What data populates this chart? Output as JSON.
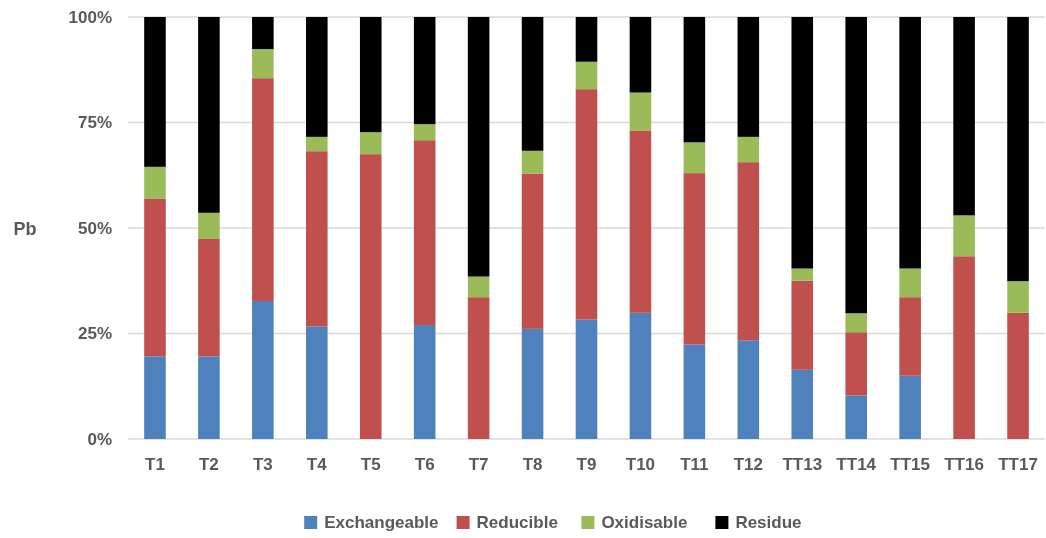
{
  "chart_data": {
    "type": "bar",
    "stacked": true,
    "ylabel": "Pb",
    "categories": [
      "T1",
      "T2",
      "T3",
      "T4",
      "T5",
      "T6",
      "T7",
      "T8",
      "T9",
      "T10",
      "T11",
      "T12",
      "TT13",
      "TT14",
      "TT15",
      "TT16",
      "TT17"
    ],
    "series": [
      {
        "name": "Exchangeable",
        "color": "#4f81bd",
        "values": [
          19.6,
          19.6,
          32.7,
          26.7,
          0,
          27.0,
          0,
          26.1,
          28.3,
          29.9,
          22.4,
          23.4,
          16.4,
          10.3,
          15.0,
          0,
          0
        ]
      },
      {
        "name": "Reducible",
        "color": "#c0504d",
        "values": [
          37.4,
          27.8,
          52.8,
          41.5,
          67.5,
          43.8,
          33.6,
          36.8,
          54.6,
          43.2,
          40.6,
          42.2,
          21.1,
          15.0,
          18.6,
          43.3,
          29.9
        ]
      },
      {
        "name": "Oxidisable",
        "color": "#9bbb59",
        "values": [
          7.5,
          6.2,
          6.9,
          3.4,
          5.2,
          3.8,
          4.9,
          5.4,
          6.5,
          9.0,
          7.3,
          6.0,
          2.9,
          4.5,
          6.8,
          9.7,
          7.5
        ]
      },
      {
        "name": "Residue",
        "color": "#000000",
        "values": [
          35.5,
          46.4,
          7.6,
          28.4,
          27.3,
          25.4,
          61.5,
          31.7,
          10.6,
          17.9,
          29.7,
          28.4,
          59.6,
          70.2,
          59.6,
          47.0,
          62.6
        ]
      }
    ],
    "ylim": [
      0,
      100
    ],
    "yticks": [
      {
        "value": 0,
        "label": "0%"
      },
      {
        "value": 25,
        "label": "25%"
      },
      {
        "value": 50,
        "label": "50%"
      },
      {
        "value": 75,
        "label": "75%"
      },
      {
        "value": 100,
        "label": "100%"
      }
    ],
    "grid": "y",
    "legend": "bottom"
  }
}
